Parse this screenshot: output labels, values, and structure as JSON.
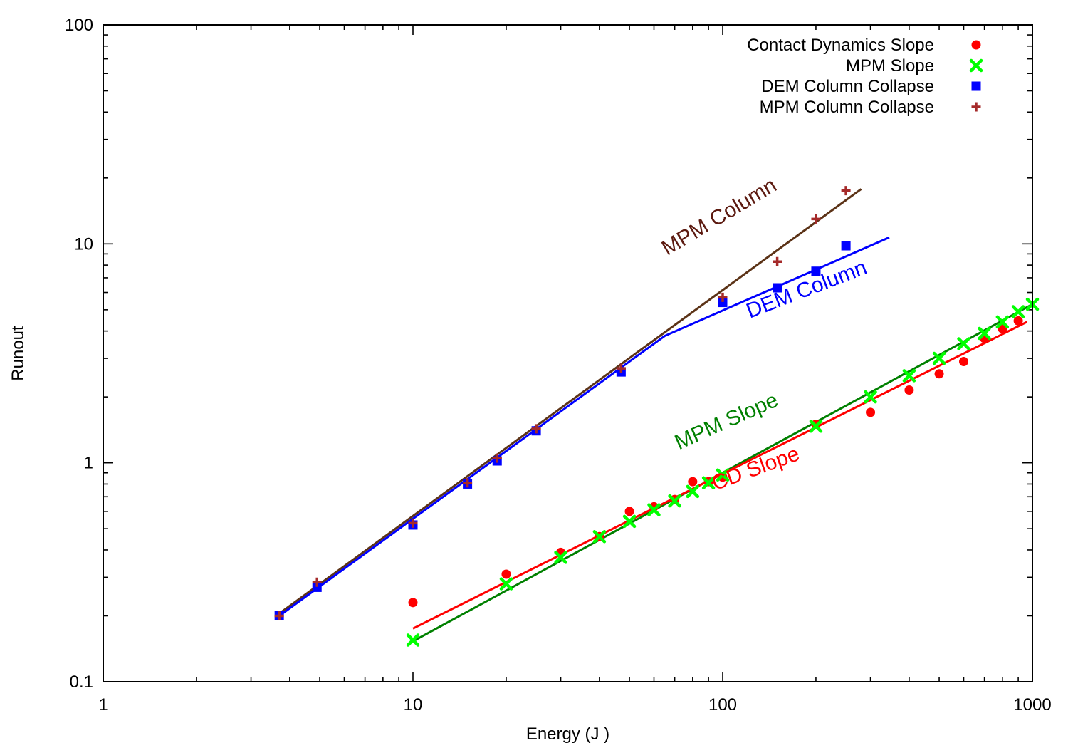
{
  "chart_data": {
    "type": "scatter",
    "title": "",
    "xlabel": "Energy (J )",
    "ylabel": "Runout",
    "x_scale": "log",
    "y_scale": "log",
    "xlim": [
      1,
      1000
    ],
    "ylim": [
      0.1,
      100
    ],
    "x_ticks": [
      {
        "value": 1,
        "label": "1"
      },
      {
        "value": 10,
        "label": "10"
      },
      {
        "value": 100,
        "label": "100"
      },
      {
        "value": 1000,
        "label": "1000"
      }
    ],
    "y_ticks": [
      {
        "value": 0.1,
        "label": "0.1"
      },
      {
        "value": 1,
        "label": "1"
      },
      {
        "value": 10,
        "label": "10"
      },
      {
        "value": 100,
        "label": "100"
      }
    ],
    "grid": false,
    "legend": {
      "position": "top-right"
    },
    "series": [
      {
        "name": "Contact Dynamics Slope",
        "marker": "circle",
        "color": "#ff0000",
        "points": [
          [
            10,
            0.23
          ],
          [
            20,
            0.31
          ],
          [
            30,
            0.39
          ],
          [
            40,
            0.46
          ],
          [
            50,
            0.6
          ],
          [
            60,
            0.63
          ],
          [
            70,
            0.68
          ],
          [
            80,
            0.82
          ],
          [
            90,
            0.82
          ],
          [
            100,
            0.86
          ],
          [
            200,
            1.5
          ],
          [
            300,
            1.7
          ],
          [
            400,
            2.15
          ],
          [
            500,
            2.55
          ],
          [
            600,
            2.9
          ],
          [
            700,
            3.7
          ],
          [
            800,
            4.1
          ],
          [
            900,
            4.45
          ]
        ]
      },
      {
        "name": "MPM Slope",
        "marker": "x-thick",
        "color": "#00ff00",
        "points": [
          [
            10,
            0.155
          ],
          [
            20,
            0.28
          ],
          [
            30,
            0.37
          ],
          [
            40,
            0.46
          ],
          [
            50,
            0.54
          ],
          [
            60,
            0.61
          ],
          [
            70,
            0.67
          ],
          [
            80,
            0.74
          ],
          [
            90,
            0.81
          ],
          [
            100,
            0.88
          ],
          [
            200,
            1.47
          ],
          [
            300,
            2.0
          ],
          [
            400,
            2.5
          ],
          [
            500,
            3.0
          ],
          [
            600,
            3.5
          ],
          [
            700,
            3.9
          ],
          [
            800,
            4.4
          ],
          [
            900,
            4.9
          ],
          [
            1000,
            5.3
          ]
        ]
      },
      {
        "name": "DEM Column Collapse",
        "marker": "square",
        "color": "#0000ff",
        "points": [
          [
            3.7,
            0.2
          ],
          [
            4.9,
            0.27
          ],
          [
            10,
            0.52
          ],
          [
            15,
            0.8
          ],
          [
            18.7,
            1.02
          ],
          [
            25,
            1.4
          ],
          [
            47,
            2.6
          ],
          [
            100,
            5.4
          ],
          [
            150,
            6.3
          ],
          [
            200,
            7.5
          ],
          [
            250,
            9.8
          ]
        ]
      },
      {
        "name": "MPM Column Collapse",
        "marker": "plus-thick",
        "color": "#a52a2a",
        "points": [
          [
            3.7,
            0.2
          ],
          [
            4.9,
            0.285
          ],
          [
            10,
            0.53
          ],
          [
            15,
            0.81
          ],
          [
            18.7,
            1.05
          ],
          [
            25,
            1.43
          ],
          [
            47,
            2.7
          ],
          [
            100,
            5.7
          ],
          [
            150,
            8.3
          ],
          [
            200,
            13
          ],
          [
            250,
            17.5
          ]
        ]
      }
    ],
    "fit_lines": [
      {
        "name": "MPM Column",
        "color": "#5c3317",
        "points": [
          [
            3.7,
            0.205
          ],
          [
            280,
            17.8
          ]
        ]
      },
      {
        "name": "DEM Column",
        "color": "#0000ff",
        "points": [
          [
            3.7,
            0.2
          ],
          [
            65,
            3.8
          ],
          [
            345,
            10.7
          ]
        ]
      },
      {
        "name": "MPM Slope",
        "color": "#008000",
        "points": [
          [
            10,
            0.153
          ],
          [
            1000,
            5.3
          ]
        ]
      },
      {
        "name": "CD Slope",
        "color": "#ff0000",
        "points": [
          [
            10,
            0.175
          ],
          [
            960,
            4.4
          ]
        ]
      }
    ],
    "annotations": [
      {
        "text": "MPM Column",
        "color": "#5c1a10",
        "x": 100,
        "y": 12.5,
        "angle": -31
      },
      {
        "text": "DEM Column",
        "color": "#0000ff",
        "x": 190,
        "y": 5.8,
        "angle": -21
      },
      {
        "text": "MPM Slope",
        "color": "#008000",
        "x": 105,
        "y": 1.45,
        "angle": -24
      },
      {
        "text": "CD Slope",
        "color": "#ff0000",
        "x": 130,
        "y": 0.88,
        "angle": -20
      }
    ]
  }
}
